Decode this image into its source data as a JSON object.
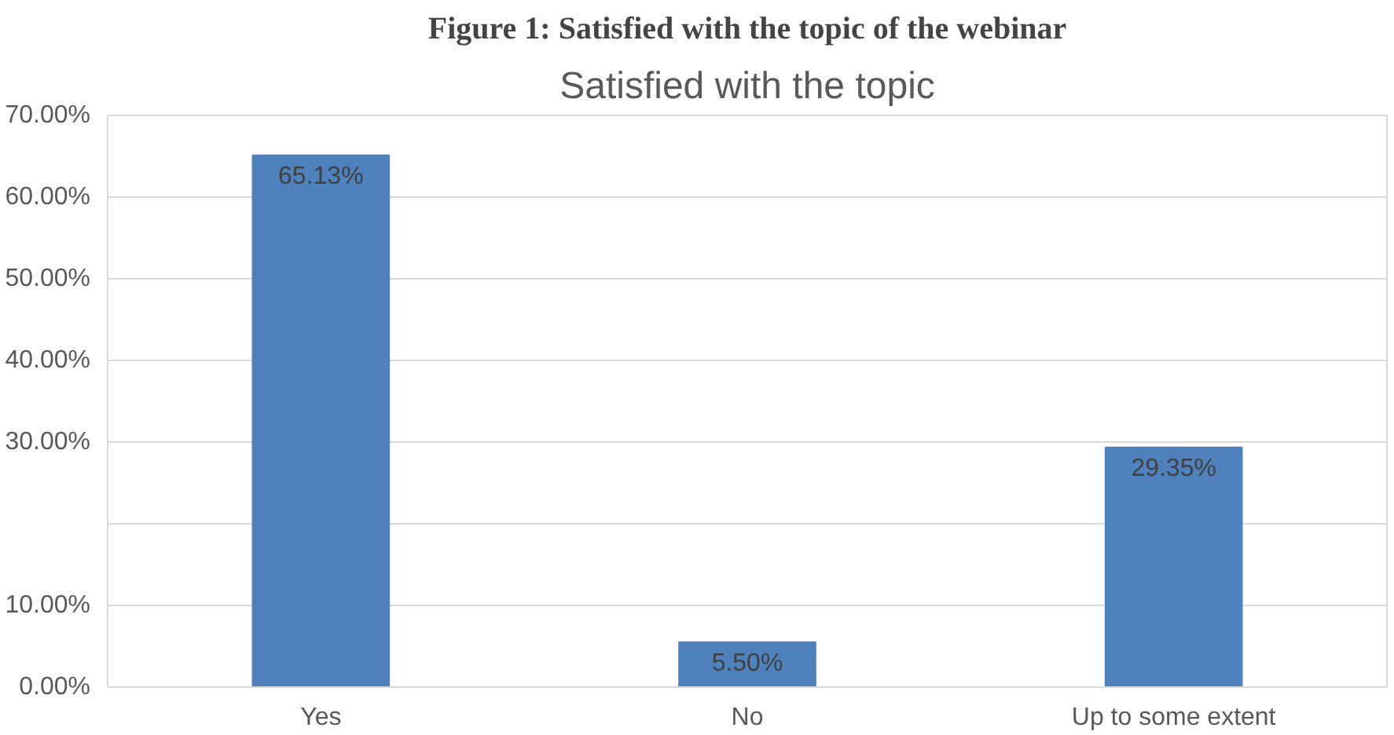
{
  "chart_data": {
    "type": "bar",
    "title": "Figure 1: Satisfied with the topic of the webinar",
    "subtitle": "Satisfied with the topic",
    "categories": [
      "Yes",
      "No",
      "Up to some extent"
    ],
    "values": [
      65.13,
      5.5,
      29.35
    ],
    "value_labels": [
      "65.13%",
      "5.50%",
      "29.35%"
    ],
    "color": "#4f81bd",
    "ylim": [
      0,
      70
    ],
    "yticks": [
      {
        "value": 0,
        "label": "0.00%"
      },
      {
        "value": 10,
        "label": "10.00%"
      },
      {
        "value": 20,
        "label": null
      },
      {
        "value": 30,
        "label": "30.00%"
      },
      {
        "value": 40,
        "label": "40.00%"
      },
      {
        "value": 50,
        "label": "50.00%"
      },
      {
        "value": 60,
        "label": "60.00%"
      },
      {
        "value": 70,
        "label": "70.00%"
      }
    ],
    "grid": "y"
  }
}
